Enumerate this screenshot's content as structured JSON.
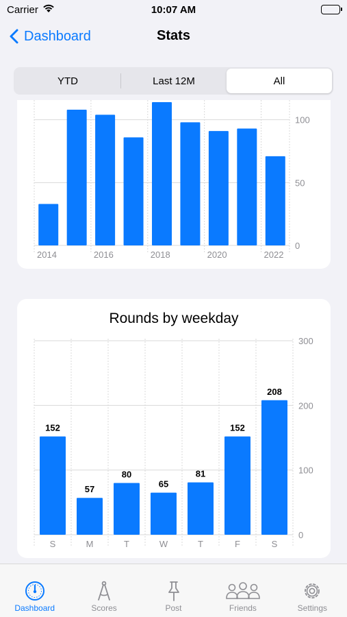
{
  "status_bar": {
    "carrier": "Carrier",
    "time": "10:07 AM"
  },
  "nav": {
    "back_label": "Dashboard",
    "title": "Stats"
  },
  "segments": {
    "options": [
      "YTD",
      "Last 12M",
      "All"
    ],
    "selected": "All"
  },
  "colors": {
    "accent": "#0a7aff",
    "bar": "#0a7aff",
    "background": "#f2f2f7"
  },
  "chart_data": [
    {
      "type": "bar",
      "title": "",
      "categories": [
        "2014",
        "2015",
        "2016",
        "2017",
        "2018",
        "2019",
        "2020",
        "2021",
        "2022"
      ],
      "x_tick_labels": [
        "2014",
        "",
        "2016",
        "",
        "2018",
        "",
        "2020",
        "",
        "2022"
      ],
      "values": [
        33,
        108,
        104,
        86,
        114,
        98,
        91,
        93,
        71
      ],
      "y_ticks": [
        "0",
        "50",
        "100"
      ],
      "ylim": [
        0,
        120
      ],
      "grid": true,
      "y_axis_side": "right",
      "note": "top partially scrolled out of view"
    },
    {
      "type": "bar",
      "title": "Rounds by weekday",
      "categories": [
        "S",
        "M",
        "T",
        "W",
        "T",
        "F",
        "S"
      ],
      "values": [
        152,
        57,
        80,
        65,
        81,
        152,
        208
      ],
      "data_labels": [
        "152",
        "57",
        "80",
        "65",
        "81",
        "152",
        "208"
      ],
      "y_ticks": [
        "0",
        "100",
        "200",
        "300"
      ],
      "ylim": [
        0,
        300
      ],
      "grid": true,
      "y_axis_side": "right"
    }
  ],
  "tabbar": {
    "items": [
      {
        "label": "Dashboard",
        "icon": "gauge-icon",
        "active": true
      },
      {
        "label": "Scores",
        "icon": "compass-icon",
        "active": false
      },
      {
        "label": "Post",
        "icon": "pin-icon",
        "active": false
      },
      {
        "label": "Friends",
        "icon": "people-icon",
        "active": false
      },
      {
        "label": "Settings",
        "icon": "gear-icon",
        "active": false
      }
    ]
  }
}
